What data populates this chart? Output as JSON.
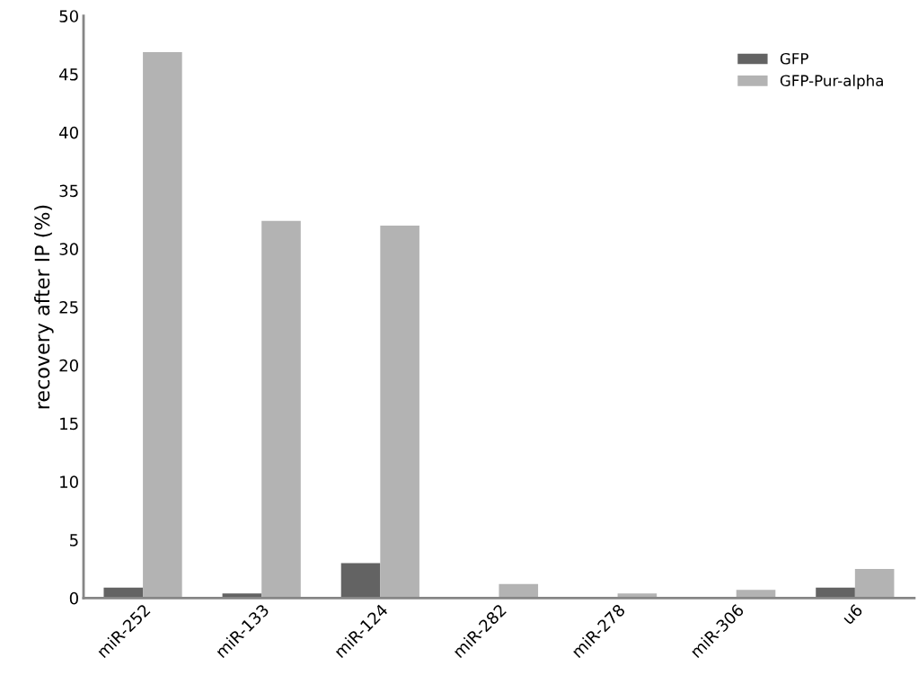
{
  "chart_data": {
    "type": "bar",
    "ylabel": "recovery after IP (%)",
    "categories": [
      "miR-252",
      "miR-133",
      "miR-124",
      "miR-282",
      "miR-278",
      "miR-306",
      "u6"
    ],
    "series": [
      {
        "name": "GFP",
        "color": "#636363",
        "values": [
          0.9,
          0.4,
          3.0,
          0.1,
          0.1,
          0.1,
          0.9
        ]
      },
      {
        "name": "GFP-Pur-alpha",
        "color": "#b3b3b3",
        "values": [
          46.9,
          32.4,
          32.0,
          1.2,
          0.4,
          0.7,
          2.5
        ]
      }
    ],
    "ylim": [
      0,
      50
    ],
    "yticks": [
      0,
      5,
      10,
      15,
      20,
      25,
      30,
      35,
      40,
      45,
      50
    ],
    "grid": false,
    "legend": "top right"
  }
}
